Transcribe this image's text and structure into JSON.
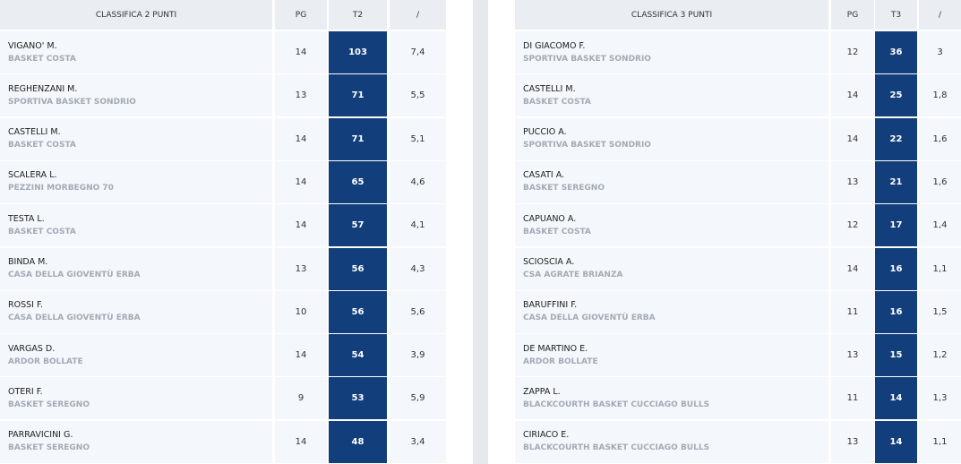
{
  "table2": {
    "headers": {
      "title": "CLASSIFICA 2 PUNTI",
      "pg": "PG",
      "stat": "T2",
      "ratio": "/"
    },
    "rows": [
      {
        "name": "VIGANO' M.",
        "team": "BASKET COSTA",
        "pg": "14",
        "stat": "103",
        "ratio": "7,4"
      },
      {
        "name": "REGHENZANI M.",
        "team": "SPORTIVA BASKET SONDRIO",
        "pg": "13",
        "stat": "71",
        "ratio": "5,5"
      },
      {
        "name": "CASTELLI M.",
        "team": "BASKET COSTA",
        "pg": "14",
        "stat": "71",
        "ratio": "5,1"
      },
      {
        "name": "SCALERA L.",
        "team": "PEZZINI MORBEGNO 70",
        "pg": "14",
        "stat": "65",
        "ratio": "4,6"
      },
      {
        "name": "TESTA L.",
        "team": "BASKET COSTA",
        "pg": "14",
        "stat": "57",
        "ratio": "4,1"
      },
      {
        "name": "BINDA M.",
        "team": "CASA DELLA GIOVENTÙ ERBA",
        "pg": "13",
        "stat": "56",
        "ratio": "4,3"
      },
      {
        "name": "ROSSI F.",
        "team": "CASA DELLA GIOVENTÙ ERBA",
        "pg": "10",
        "stat": "56",
        "ratio": "5,6"
      },
      {
        "name": "VARGAS D.",
        "team": "ARDOR BOLLATE",
        "pg": "14",
        "stat": "54",
        "ratio": "3,9"
      },
      {
        "name": "OTERI F.",
        "team": "BASKET SEREGNO",
        "pg": "9",
        "stat": "53",
        "ratio": "5,9"
      },
      {
        "name": "PARRAVICINI G.",
        "team": "BASKET SEREGNO",
        "pg": "14",
        "stat": "48",
        "ratio": "3,4"
      }
    ]
  },
  "table3": {
    "headers": {
      "title": "CLASSIFICA 3 PUNTI",
      "pg": "PG",
      "stat": "T3",
      "ratio": "/"
    },
    "rows": [
      {
        "name": "DI GIACOMO F.",
        "team": "SPORTIVA BASKET SONDRIO",
        "pg": "12",
        "stat": "36",
        "ratio": "3"
      },
      {
        "name": "CASTELLI M.",
        "team": "BASKET COSTA",
        "pg": "14",
        "stat": "25",
        "ratio": "1,8"
      },
      {
        "name": "PUCCIO A.",
        "team": "SPORTIVA BASKET SONDRIO",
        "pg": "14",
        "stat": "22",
        "ratio": "1,6"
      },
      {
        "name": "CASATI A.",
        "team": "BASKET SEREGNO",
        "pg": "13",
        "stat": "21",
        "ratio": "1,6"
      },
      {
        "name": "CAPUANO A.",
        "team": "BASKET COSTA",
        "pg": "12",
        "stat": "17",
        "ratio": "1,4"
      },
      {
        "name": "SCIOSCIA A.",
        "team": "CSA AGRATE BRIANZA",
        "pg": "14",
        "stat": "16",
        "ratio": "1,1"
      },
      {
        "name": "BARUFFINI F.",
        "team": "CASA DELLA GIOVENTÙ ERBA",
        "pg": "11",
        "stat": "16",
        "ratio": "1,5"
      },
      {
        "name": "DE MARTINO E.",
        "team": "ARDOR BOLLATE",
        "pg": "13",
        "stat": "15",
        "ratio": "1,2"
      },
      {
        "name": "ZAPPA L.",
        "team": "BLACKCOURTH BASKET CUCCIAGO BULLS",
        "pg": "11",
        "stat": "14",
        "ratio": "1,3"
      },
      {
        "name": "CIRIACO E.",
        "team": "BLACKCOURTH BASKET CUCCIAGO BULLS",
        "pg": "13",
        "stat": "14",
        "ratio": "1,1"
      }
    ]
  }
}
